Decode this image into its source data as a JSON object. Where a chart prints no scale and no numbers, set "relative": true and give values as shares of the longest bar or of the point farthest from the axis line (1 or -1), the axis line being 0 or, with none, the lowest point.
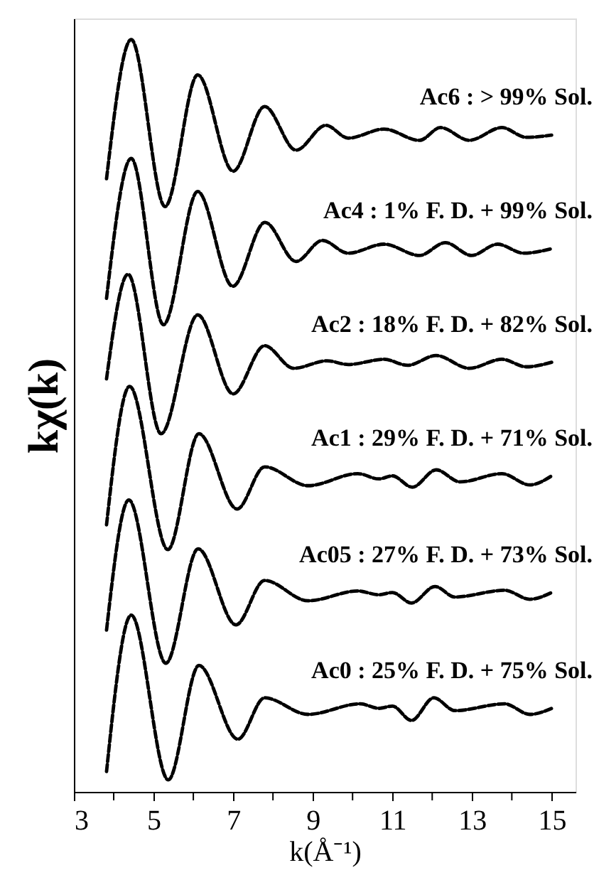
{
  "chart_data": {
    "type": "line",
    "relative": true,
    "xlabel": "k(Å⁻¹)",
    "ylabel": "kχ(k)",
    "xlim": [
      3,
      15.6
    ],
    "xticks": [
      3,
      {
        "value": 4,
        "label": null
      },
      5,
      {
        "value": 6,
        "label": null
      },
      7,
      {
        "value": 8,
        "label": null
      },
      9,
      {
        "value": 10,
        "label": null
      },
      11,
      {
        "value": 12,
        "label": null
      },
      13,
      {
        "value": 14,
        "label": null
      },
      15
    ],
    "tick_labels": "x",
    "grid": false,
    "line_style": "dashed",
    "series": [
      {
        "name": "Ac6 : > 99% Sol.",
        "color": "#000000",
        "x": [
          3.82,
          4.44,
          5.29,
          6.11,
          7.0,
          7.79,
          8.58,
          9.33,
          9.89,
          10.79,
          11.68,
          12.21,
          12.93,
          13.75,
          14.36,
          15
        ],
        "values": [
          0.815,
          1.0,
          0.778,
          0.953,
          0.825,
          0.911,
          0.853,
          0.886,
          0.869,
          0.881,
          0.866,
          0.883,
          0.866,
          0.883,
          0.87,
          0.873
        ]
      },
      {
        "name": "Ac4 : 1% F. D. + 99% Sol.",
        "color": "#000000",
        "x": [
          3.82,
          4.44,
          5.25,
          6.11,
          6.99,
          7.8,
          8.58,
          9.24,
          9.89,
          10.79,
          11.68,
          12.33,
          12.99,
          13.64,
          14.3,
          15
        ],
        "values": [
          0.656,
          0.842,
          0.621,
          0.798,
          0.672,
          0.757,
          0.705,
          0.733,
          0.716,
          0.728,
          0.713,
          0.73,
          0.713,
          0.728,
          0.716,
          0.722
        ]
      },
      {
        "name": "Ac2 : 18% F. D. + 82% Sol.",
        "color": "#000000",
        "x": [
          3.82,
          4.36,
          5.19,
          6.11,
          7.0,
          7.79,
          8.52,
          9.36,
          9.89,
          10.79,
          11.38,
          12.1,
          12.93,
          13.75,
          14.36,
          15
        ],
        "values": [
          0.549,
          0.688,
          0.476,
          0.634,
          0.529,
          0.593,
          0.563,
          0.573,
          0.568,
          0.575,
          0.567,
          0.58,
          0.563,
          0.575,
          0.565,
          0.571
        ]
      },
      {
        "name": "Ac1 : 29% F. D. + 71% Sol.",
        "color": "#000000",
        "x": [
          3.82,
          4.4,
          5.36,
          6.14,
          7.1,
          7.79,
          8.88,
          10.13,
          10.66,
          11.0,
          11.5,
          12.1,
          12.7,
          13.75,
          14.45,
          15
        ],
        "values": [
          0.355,
          0.539,
          0.322,
          0.476,
          0.376,
          0.432,
          0.407,
          0.423,
          0.416,
          0.42,
          0.405,
          0.428,
          0.412,
          0.423,
          0.408,
          0.42
        ]
      },
      {
        "name": "Ac05 : 27% F. D. + 73% Sol.",
        "color": "#000000",
        "x": [
          3.82,
          4.38,
          5.31,
          6.12,
          7.07,
          7.79,
          8.88,
          10.13,
          10.66,
          11.0,
          11.48,
          12.07,
          12.57,
          13.82,
          14.45,
          15
        ],
        "values": [
          0.215,
          0.388,
          0.171,
          0.323,
          0.222,
          0.281,
          0.254,
          0.267,
          0.262,
          0.265,
          0.251,
          0.273,
          0.259,
          0.268,
          0.256,
          0.265
        ]
      },
      {
        "name": "Ac0 : 25% F. D. + 75% Sol.",
        "color": "#000000",
        "x": [
          3.82,
          4.44,
          5.37,
          6.14,
          7.12,
          7.79,
          8.88,
          10.19,
          10.66,
          11.0,
          11.48,
          12.04,
          12.57,
          13.82,
          14.45,
          15
        ],
        "values": [
          0.027,
          0.235,
          0.016,
          0.168,
          0.07,
          0.125,
          0.103,
          0.117,
          0.111,
          0.114,
          0.095,
          0.125,
          0.108,
          0.117,
          0.103,
          0.111
        ]
      }
    ]
  }
}
